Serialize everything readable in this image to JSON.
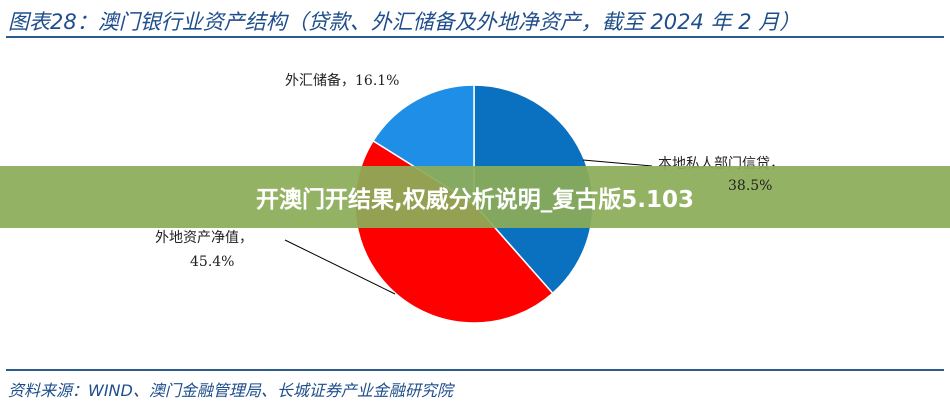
{
  "header": {
    "title": "图表28：澳门银行业资产结构（贷款、外汇储备及外地净资产，截至 2024 年 2 月）"
  },
  "footer": {
    "source": "资料来源：WIND、澳门金融管理局、长城证券产业金融研究院"
  },
  "banner": {
    "text": "开澳门开结果,权威分析说明_复古版5.103"
  },
  "chart_data": {
    "type": "pie",
    "title": "",
    "slices": [
      {
        "label": "本地私人部门信贷，",
        "value_label": "38.5%",
        "value": 38.5,
        "color": "#0a70c0"
      },
      {
        "label": "外地资产净值，",
        "value_label": "45.4%",
        "value": 45.4,
        "color": "#ff0000"
      },
      {
        "label": "外汇储备，",
        "value_label": "16.1%",
        "value": 16.1,
        "color": "#1f8ee6"
      }
    ],
    "labels_display": [
      "外汇储备，16.1%"
    ]
  }
}
